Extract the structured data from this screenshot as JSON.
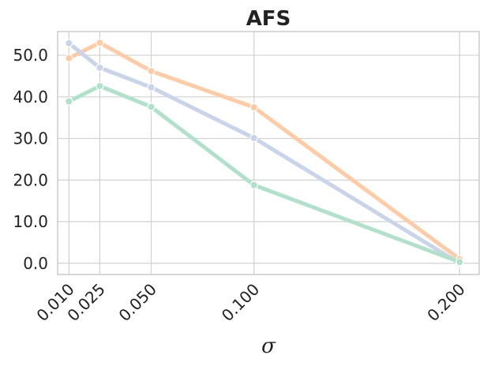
{
  "chart_data": {
    "type": "line",
    "title": "AFS",
    "xlabel": "σ",
    "ylabel": "",
    "x": [
      0.01,
      0.025,
      0.05,
      0.1,
      0.2
    ],
    "x_tick_labels": [
      "0.010",
      "0.025",
      "0.050",
      "0.100",
      "0.200"
    ],
    "y_ticks": [
      0,
      10,
      20,
      30,
      40,
      50
    ],
    "y_tick_labels": [
      "0.0",
      "10.0",
      "20.0",
      "30.0",
      "40.0",
      "50.0"
    ],
    "xlim": [
      0.0045,
      0.2095
    ],
    "ylim": [
      -2.7,
      55.7
    ],
    "grid": true,
    "legend": "none",
    "series": [
      {
        "color": "#ffcba4",
        "values": [
          49.3,
          53.0,
          46.2,
          37.5,
          1.0
        ]
      },
      {
        "color": "#c8d4ea",
        "values": [
          52.9,
          47.0,
          42.3,
          30.1,
          0.0
        ]
      },
      {
        "color": "#b0e2cb",
        "values": [
          38.9,
          42.6,
          37.6,
          18.8,
          0.3
        ]
      }
    ]
  }
}
